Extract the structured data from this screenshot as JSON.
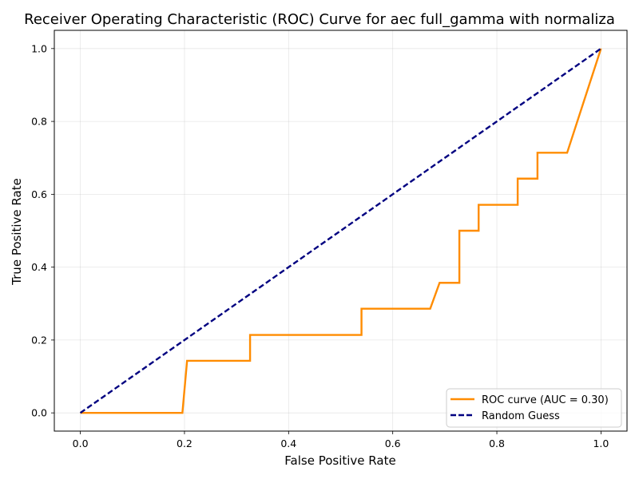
{
  "chart_data": {
    "type": "line",
    "title": "Receiver Operating Characteristic (ROC) Curve for aec full_gamma with normaliza",
    "xlabel": "False Positive Rate",
    "ylabel": "True Positive Rate",
    "xlim": [
      -0.05,
      1.05
    ],
    "ylim": [
      -0.05,
      1.05
    ],
    "xticks": [
      0.0,
      0.2,
      0.4,
      0.6,
      0.8,
      1.0
    ],
    "yticks": [
      0.0,
      0.2,
      0.4,
      0.6,
      0.8,
      1.0
    ],
    "xtick_labels": [
      "0.0",
      "0.2",
      "0.4",
      "0.6",
      "0.8",
      "1.0"
    ],
    "ytick_labels": [
      "0.0",
      "0.2",
      "0.4",
      "0.6",
      "0.8",
      "1.0"
    ],
    "grid": true,
    "legend_position": "lower-right",
    "series": [
      {
        "name": "ROC curve (AUC = 0.30)",
        "color": "#ff8c00",
        "style": "solid",
        "x": [
          0.0,
          0.196,
          0.205,
          0.326,
          0.326,
          0.54,
          0.54,
          0.672,
          0.69,
          0.728,
          0.728,
          0.765,
          0.765,
          0.84,
          0.84,
          0.878,
          0.878,
          0.935,
          1.0
        ],
        "y": [
          0.0,
          0.0,
          0.143,
          0.143,
          0.214,
          0.214,
          0.286,
          0.286,
          0.357,
          0.357,
          0.5,
          0.5,
          0.571,
          0.571,
          0.643,
          0.643,
          0.714,
          0.714,
          1.0
        ]
      },
      {
        "name": "Random Guess",
        "color": "#000080",
        "style": "dashed",
        "x": [
          0.0,
          1.0
        ],
        "y": [
          0.0,
          1.0
        ]
      }
    ]
  }
}
